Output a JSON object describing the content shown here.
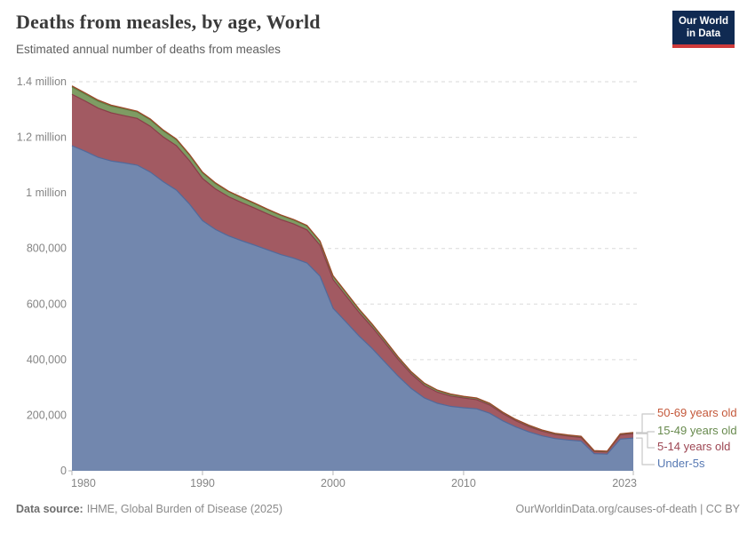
{
  "header": {
    "title": "Deaths from measles, by age, World",
    "subtitle": "Estimated annual number of deaths from measles",
    "logo": {
      "line1": "Our World",
      "line2": "in Data",
      "bg_color": "#102a52",
      "stripe_color": "#cf3b3b"
    }
  },
  "chart_data": {
    "type": "area",
    "stacked": true,
    "title": "Deaths from measles, by age, World",
    "subtitle": "Estimated annual number of deaths from measles",
    "xlabel": "",
    "ylabel": "",
    "grid": "dashed-horizontal",
    "legend_position": "right",
    "ylim": [
      0,
      1400000
    ],
    "x": [
      1980,
      1981,
      1982,
      1983,
      1984,
      1985,
      1986,
      1987,
      1988,
      1989,
      1990,
      1991,
      1992,
      1993,
      1994,
      1995,
      1996,
      1997,
      1998,
      1999,
      2000,
      2001,
      2002,
      2003,
      2004,
      2005,
      2006,
      2007,
      2008,
      2009,
      2010,
      2011,
      2012,
      2013,
      2014,
      2015,
      2016,
      2017,
      2018,
      2019,
      2020,
      2021,
      2022,
      2023
    ],
    "xticks": [
      {
        "year": 1980,
        "label": "1980"
      },
      {
        "year": 1990,
        "label": "1990"
      },
      {
        "year": 2000,
        "label": "2000"
      },
      {
        "year": 2010,
        "label": "2010"
      },
      {
        "year": 2023,
        "label": "2023"
      }
    ],
    "yticks": [
      {
        "value": 0,
        "label": "0"
      },
      {
        "value": 200000,
        "label": "200,000"
      },
      {
        "value": 400000,
        "label": "400,000"
      },
      {
        "value": 600000,
        "label": "600,000"
      },
      {
        "value": 800000,
        "label": "800,000"
      },
      {
        "value": 1000000,
        "label": "1 million"
      },
      {
        "value": 1200000,
        "label": "1.2 million"
      },
      {
        "value": 1400000,
        "label": "1.4 million"
      }
    ],
    "series": [
      {
        "name": "Under-5s",
        "color": "#7287ae",
        "edge_color": "#52699a",
        "label_color": "#5779b3",
        "legend_y": 523,
        "elbow_x": 723,
        "values": [
          1170000,
          1150000,
          1128000,
          1115000,
          1108000,
          1100000,
          1075000,
          1040000,
          1010000,
          960000,
          900000,
          868000,
          845000,
          828000,
          812000,
          795000,
          778000,
          765000,
          748000,
          700000,
          585000,
          535000,
          485000,
          440000,
          390000,
          340000,
          296000,
          262000,
          243000,
          232000,
          227000,
          223000,
          207000,
          180000,
          158000,
          140000,
          126000,
          116000,
          111000,
          107000,
          62000,
          60000,
          114000,
          118000
        ]
      },
      {
        "name": "5-14 years old",
        "color": "#a25a62",
        "edge_color": "#8a3e49",
        "label_color": "#9d4653",
        "legend_y": 504,
        "elbow_x": 729,
        "values": [
          185000,
          181000,
          177000,
          173000,
          170000,
          168000,
          165000,
          161000,
          160000,
          156000,
          152000,
          146000,
          141000,
          137000,
          133000,
          129000,
          126000,
          123000,
          119000,
          112000,
          103000,
          94000,
          85000,
          77000,
          69000,
          60000,
          52000,
          45000,
          40000,
          37000,
          35000,
          33000,
          30000,
          26000,
          22000,
          19000,
          17000,
          15000,
          14000,
          13000,
          8000,
          8000,
          15000,
          16000
        ]
      },
      {
        "name": "15-49 years old",
        "color": "#7e9c63",
        "edge_color": "#5f7f45",
        "label_color": "#688a4e",
        "legend_y": 486,
        "elbow_x": 729,
        "values": [
          26000,
          25000,
          25000,
          24000,
          24000,
          23000,
          23000,
          22000,
          21000,
          20000,
          20000,
          19000,
          18000,
          17000,
          16000,
          15000,
          15000,
          14000,
          14000,
          13000,
          12000,
          11000,
          10000,
          9000,
          9000,
          8000,
          7000,
          7000,
          6000,
          6000,
          5000,
          5000,
          5000,
          4000,
          4000,
          4000,
          3000,
          3000,
          3000,
          3000,
          2000,
          2000,
          3000,
          3000
        ]
      },
      {
        "name": "50-69 years old",
        "color": "#c05b3d",
        "edge_color": "#9d4526",
        "label_color": "#c4583a",
        "legend_y": 466,
        "elbow_x": 723,
        "values": [
          4000,
          4000,
          4000,
          4000,
          3000,
          3000,
          3000,
          3000,
          3000,
          3000,
          3000,
          3000,
          2000,
          2000,
          2000,
          2000,
          2000,
          2000,
          2000,
          2000,
          2000,
          2000,
          2000,
          2000,
          2000,
          1500,
          1500,
          1500,
          1500,
          1500,
          1200,
          1200,
          1200,
          1200,
          1200,
          1200,
          1200,
          1200,
          1200,
          1200,
          1000,
          1000,
          1200,
          1200
        ]
      }
    ]
  },
  "footer": {
    "source_label": "Data source:",
    "source_value": "IHME, Global Burden of Disease (2025)",
    "url": "OurWorldinData.org/causes-of-death",
    "divider": " | ",
    "license": "CC BY"
  }
}
